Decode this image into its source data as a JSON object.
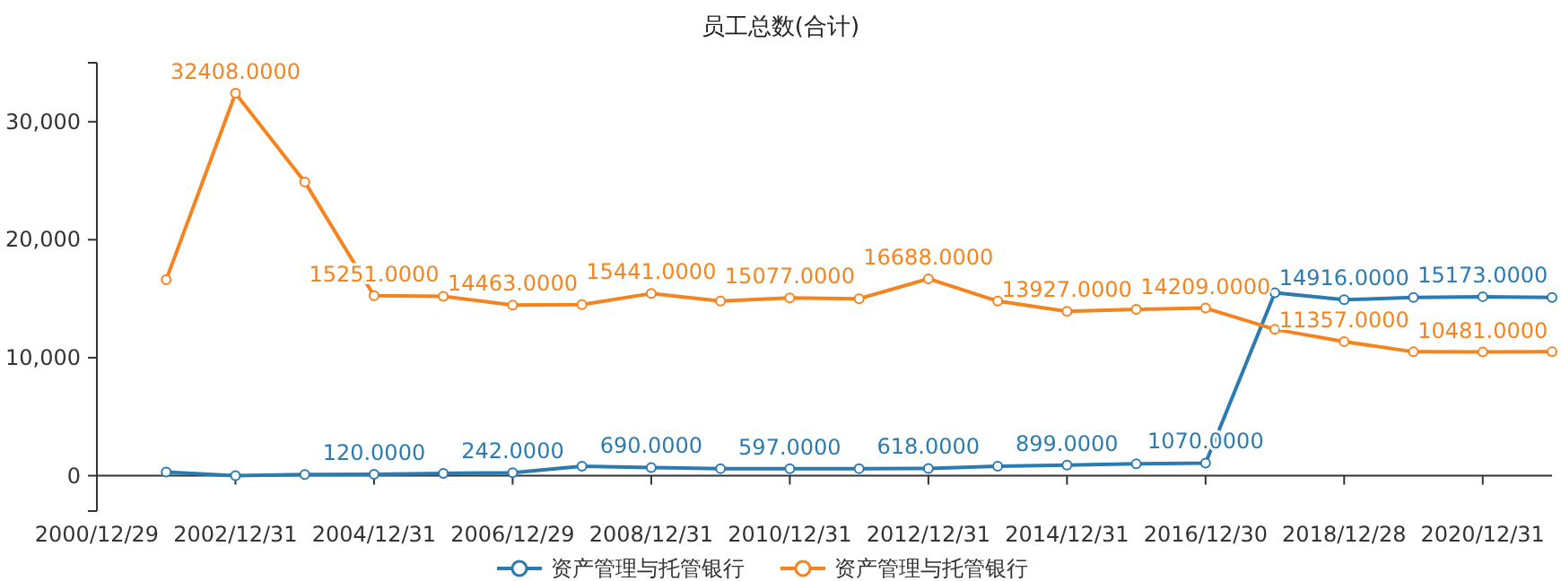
{
  "chart_data": {
    "type": "line",
    "title": "员工总数(合计)",
    "categories": [
      "2000/12/29",
      null,
      "2002/12/31",
      null,
      "2004/12/31",
      null,
      "2006/12/29",
      null,
      "2008/12/31",
      null,
      "2010/12/31",
      null,
      "2012/12/31",
      null,
      "2014/12/31",
      null,
      "2016/12/30",
      null,
      "2018/12/28",
      null,
      "2020/12/31",
      null
    ],
    "series": [
      {
        "name": "资产管理与托管银行",
        "color": "#2b7bb0",
        "values": [
          null,
          300,
          0,
          100,
          120,
          200,
          242,
          800,
          690,
          600,
          597,
          600,
          618,
          800,
          899,
          1000,
          1070,
          15500,
          14916,
          15100,
          15173,
          15100
        ],
        "value_labels": [
          null,
          null,
          null,
          null,
          "120.0000",
          null,
          "242.0000",
          null,
          "690.0000",
          null,
          "597.0000",
          null,
          "618.0000",
          null,
          "899.0000",
          null,
          "1070.0000",
          null,
          "14916.0000",
          null,
          "15173.0000",
          null
        ]
      },
      {
        "name": "资产管理与托管银行",
        "color": "#f5841f",
        "values": [
          null,
          16600,
          32408,
          24900,
          15251,
          15200,
          14463,
          14500,
          15441,
          14800,
          15077,
          15000,
          16688,
          14800,
          13927,
          14100,
          14209,
          12400,
          11357,
          10500,
          10481,
          10500
        ],
        "value_labels": [
          null,
          null,
          "32408.0000",
          null,
          "15251.0000",
          null,
          "14463.0000",
          null,
          "15441.0000",
          null,
          "15077.0000",
          null,
          "16688.0000",
          null,
          "13927.0000",
          null,
          "14209.0000",
          null,
          "11357.0000",
          null,
          "10481.0000",
          null
        ]
      }
    ],
    "ylim": [
      -3000,
      35000
    ],
    "yticks": [
      {
        "value": -3000,
        "label": null
      },
      0,
      {
        "value": 10000,
        "label": "10,000"
      },
      {
        "value": 20000,
        "label": "20,000"
      },
      {
        "value": 30000,
        "label": "30,000"
      },
      {
        "value": 35000,
        "label": null
      }
    ],
    "grid": false,
    "legend": "bottom",
    "marker": "circle",
    "line_style": "solid"
  }
}
